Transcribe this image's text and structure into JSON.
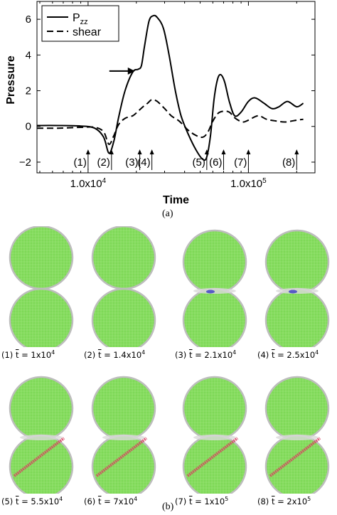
{
  "chart_data": {
    "type": "line",
    "title": "",
    "xlabel": "Time",
    "ylabel": "Pressure",
    "x_scale": "log",
    "xlim": [
      4800,
      260000
    ],
    "ylim": [
      -2.6,
      7
    ],
    "x_ticks": [
      {
        "value": 10000,
        "mantissa": "1.0x10",
        "exp": "4"
      },
      {
        "value": 100000,
        "mantissa": "1.0x10",
        "exp": "5"
      }
    ],
    "y_ticks": [
      -2,
      0,
      2,
      4,
      6
    ],
    "legend": {
      "position": "top-left"
    },
    "series": [
      {
        "name": "P",
        "name_sub": "zz",
        "style": "solid",
        "x": [
          4800,
          6500,
          9000,
          11000,
          12500,
          13500,
          14500,
          15500,
          17000,
          19000,
          20500,
          21500,
          22500,
          24000,
          25500,
          27000,
          29500,
          32000,
          35000,
          38000,
          42000,
          47000,
          52000,
          55000,
          58000,
          61000,
          64000,
          67000,
          71000,
          76000,
          82000,
          90000,
          100000,
          110000,
          125000,
          140000,
          155000,
          175000,
          200000,
          220000
        ],
        "y": [
          0.05,
          0.05,
          0.02,
          -0.1,
          -0.6,
          -1.5,
          -0.8,
          0.5,
          2.0,
          3.05,
          3.2,
          3.4,
          4.5,
          5.9,
          6.2,
          6.1,
          5.5,
          4.0,
          2.0,
          0.6,
          -0.4,
          -1.3,
          -1.85,
          -1.7,
          -0.5,
          1.5,
          2.6,
          2.9,
          2.5,
          1.4,
          0.6,
          0.8,
          1.4,
          1.6,
          1.3,
          1.0,
          1.1,
          1.4,
          1.1,
          1.3
        ]
      },
      {
        "name": "shear",
        "style": "dashed",
        "x": [
          4800,
          6500,
          9000,
          11000,
          12500,
          13500,
          14500,
          15500,
          17000,
          19000,
          20500,
          22000,
          23500,
          25000,
          27000,
          30000,
          33000,
          37000,
          42000,
          47000,
          52000,
          56000,
          60000,
          65000,
          70000,
          76000,
          83000,
          92000,
          100000,
          115000,
          130000,
          150000,
          170000,
          200000,
          220000
        ],
        "y": [
          -0.1,
          -0.1,
          -0.05,
          -0.05,
          -0.3,
          -1.0,
          -0.5,
          0.1,
          0.45,
          0.6,
          0.85,
          1.1,
          1.3,
          1.5,
          1.4,
          1.0,
          0.6,
          0.3,
          -0.2,
          -0.5,
          -0.6,
          -0.3,
          0.3,
          0.75,
          0.85,
          0.8,
          0.45,
          0.25,
          0.35,
          0.6,
          0.4,
          0.3,
          0.25,
          0.35,
          0.4
        ]
      }
    ],
    "arrow_annotation": {
      "x": 20000,
      "y": 3.1
    },
    "markers": [
      {
        "label": "(1)",
        "x": 10000
      },
      {
        "label": "(2)",
        "x": 14000
      },
      {
        "label": "(3)",
        "x": 21000
      },
      {
        "label": "(4)",
        "x": 25000
      },
      {
        "label": "(5)",
        "x": 55000
      },
      {
        "label": "(6)",
        "x": 70000
      },
      {
        "label": "(7)",
        "x": 100000
      },
      {
        "label": "(8)",
        "x": 200000
      }
    ]
  },
  "captions": {
    "a": "(a)",
    "b": "(b)"
  },
  "frames": [
    {
      "idx": "(1)",
      "mantissa": "1x10",
      "exp": "4",
      "state": "intact"
    },
    {
      "idx": "(2)",
      "mantissa": "1.4x10",
      "exp": "4",
      "state": "intact"
    },
    {
      "idx": "(3)",
      "mantissa": "2.1x10",
      "exp": "4",
      "state": "contact"
    },
    {
      "idx": "(4)",
      "mantissa": "2.5x10",
      "exp": "4",
      "state": "contact"
    },
    {
      "idx": "(5)",
      "mantissa": "5.5x10",
      "exp": "4",
      "state": "crack"
    },
    {
      "idx": "(6)",
      "mantissa": "7x10",
      "exp": "4",
      "state": "crack"
    },
    {
      "idx": "(7)",
      "mantissa": "1x10",
      "exp": "5",
      "state": "crack"
    },
    {
      "idx": "(8)",
      "mantissa": "2x10",
      "exp": "5",
      "state": "crack"
    }
  ],
  "colors": {
    "sphere": "#7ed957",
    "sphere_edge": "#bdbdbd",
    "crack": "#d94060",
    "defect": "#3a3ac8"
  }
}
